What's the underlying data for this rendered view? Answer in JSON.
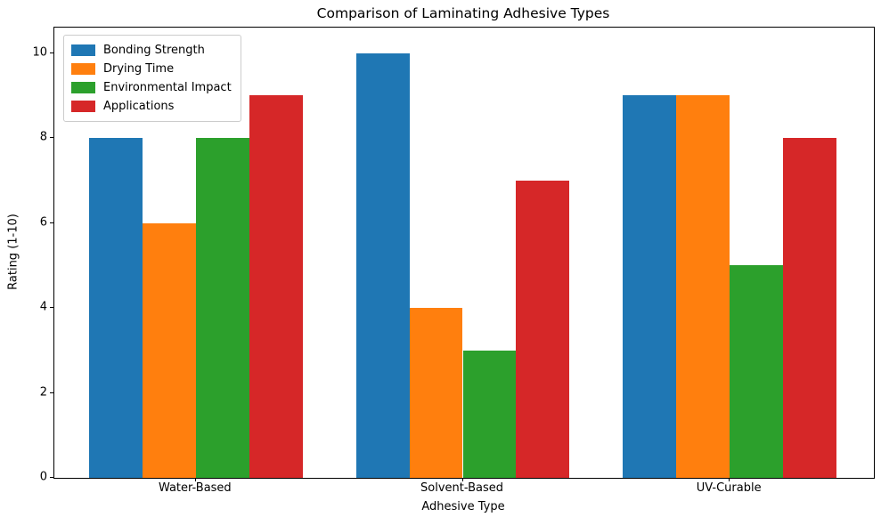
{
  "title": "Comparison of Laminating Adhesive Types",
  "chart_data": {
    "type": "bar",
    "categories": [
      "Water-Based",
      "Solvent-Based",
      "UV-Curable"
    ],
    "series": [
      {
        "name": "Bonding Strength",
        "color": "#1f77b4",
        "values": [
          8,
          10,
          9
        ]
      },
      {
        "name": "Drying Time",
        "color": "#ff7f0e",
        "values": [
          6,
          4,
          9
        ]
      },
      {
        "name": "Environmental Impact",
        "color": "#2ca02c",
        "values": [
          8,
          3,
          5
        ]
      },
      {
        "name": "Applications",
        "color": "#d62728",
        "values": [
          9,
          7,
          8
        ]
      }
    ],
    "title": "Comparison of Laminating Adhesive Types",
    "xlabel": "Adhesive Type",
    "ylabel": "Rating (1-10)",
    "yticks": [
      0,
      2,
      4,
      6,
      8,
      10
    ],
    "ylim": [
      0,
      10.6
    ],
    "legend_position": "upper left",
    "grid": false
  }
}
